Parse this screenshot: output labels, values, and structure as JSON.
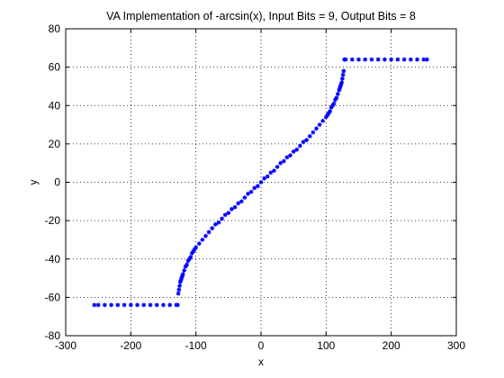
{
  "chart_data": {
    "type": "scatter",
    "title": "VA Implementation of -arcsin(x), Input Bits = 9, Output Bits = 8",
    "xlabel": "x",
    "ylabel": "y",
    "xlim": [
      -300,
      300
    ],
    "ylim": [
      -80,
      80
    ],
    "xticks": [
      -300,
      -200,
      -100,
      0,
      100,
      200,
      300
    ],
    "yticks": [
      -80,
      -60,
      -40,
      -20,
      0,
      20,
      40,
      60,
      80
    ],
    "grid": true,
    "marker_color": "#0000ff",
    "series": [
      {
        "x": [
          -256,
          -250,
          -240,
          -230,
          -220,
          -210,
          -200,
          -190,
          -180,
          -170,
          -160,
          -150,
          -140,
          -130,
          -128,
          -127,
          -126,
          -125,
          -124,
          -123,
          -122,
          -121,
          -120,
          -118,
          -116,
          -114,
          -112,
          -110,
          -108,
          -106,
          -104,
          -102,
          -100,
          -95,
          -90,
          -85,
          -80,
          -75,
          -70,
          -65,
          -60,
          -55,
          -50,
          -45,
          -40,
          -35,
          -30,
          -25,
          -20,
          -15,
          -10,
          -5,
          0,
          5,
          10,
          15,
          20,
          25,
          30,
          35,
          40,
          45,
          50,
          55,
          60,
          65,
          70,
          75,
          80,
          85,
          90,
          95,
          100,
          102,
          104,
          106,
          108,
          110,
          112,
          114,
          116,
          118,
          120,
          121,
          122,
          123,
          124,
          125,
          126,
          127,
          128,
          130,
          140,
          150,
          160,
          170,
          180,
          190,
          200,
          210,
          220,
          230,
          240,
          250,
          255
        ],
        "y": [
          -64,
          -64,
          -64,
          -64,
          -64,
          -64,
          -64,
          -64,
          -64,
          -64,
          -64,
          -64,
          -64,
          -64,
          -64,
          -58,
          -56,
          -54,
          -52,
          -51,
          -50,
          -49,
          -48,
          -46,
          -44,
          -43,
          -41,
          -40,
          -39,
          -37,
          -36,
          -35,
          -34,
          -32,
          -30,
          -28,
          -26,
          -24,
          -22,
          -21,
          -19,
          -17,
          -16,
          -14,
          -13,
          -11,
          -10,
          -8,
          -6,
          -5,
          -3,
          -2,
          0,
          2,
          3,
          5,
          6,
          8,
          10,
          11,
          13,
          14,
          16,
          17,
          19,
          21,
          22,
          24,
          26,
          28,
          30,
          32,
          34,
          35,
          36,
          37,
          39,
          40,
          41,
          43,
          44,
          46,
          48,
          49,
          50,
          51,
          52,
          54,
          56,
          58,
          64,
          64,
          64,
          64,
          64,
          64,
          64,
          64,
          64,
          64,
          64,
          64,
          64,
          64,
          64
        ]
      }
    ]
  }
}
